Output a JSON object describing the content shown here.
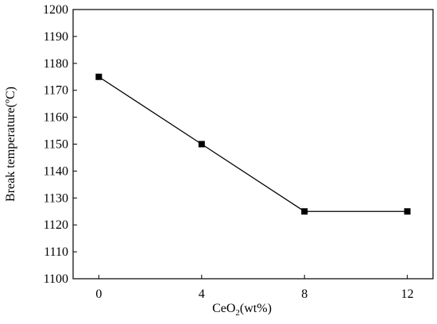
{
  "chart_data": {
    "type": "line",
    "title": "",
    "xlabel": "CeO",
    "xlabel_sub": "2",
    "xlabel_tail": "(wt%)",
    "ylabel": "Break temperature(ºC)",
    "xlim": [
      -1,
      13
    ],
    "ylim": [
      1100,
      1200
    ],
    "x_ticks": [
      0,
      4,
      8,
      12
    ],
    "y_ticks": [
      1100,
      1110,
      1120,
      1130,
      1140,
      1150,
      1160,
      1170,
      1180,
      1190,
      1200
    ],
    "grid": false,
    "legend": "none",
    "series": [
      {
        "color": "#000000",
        "marker": "square",
        "x": [
          0,
          4,
          8,
          12
        ],
        "y": [
          1175,
          1150,
          1125,
          1125
        ]
      }
    ]
  }
}
